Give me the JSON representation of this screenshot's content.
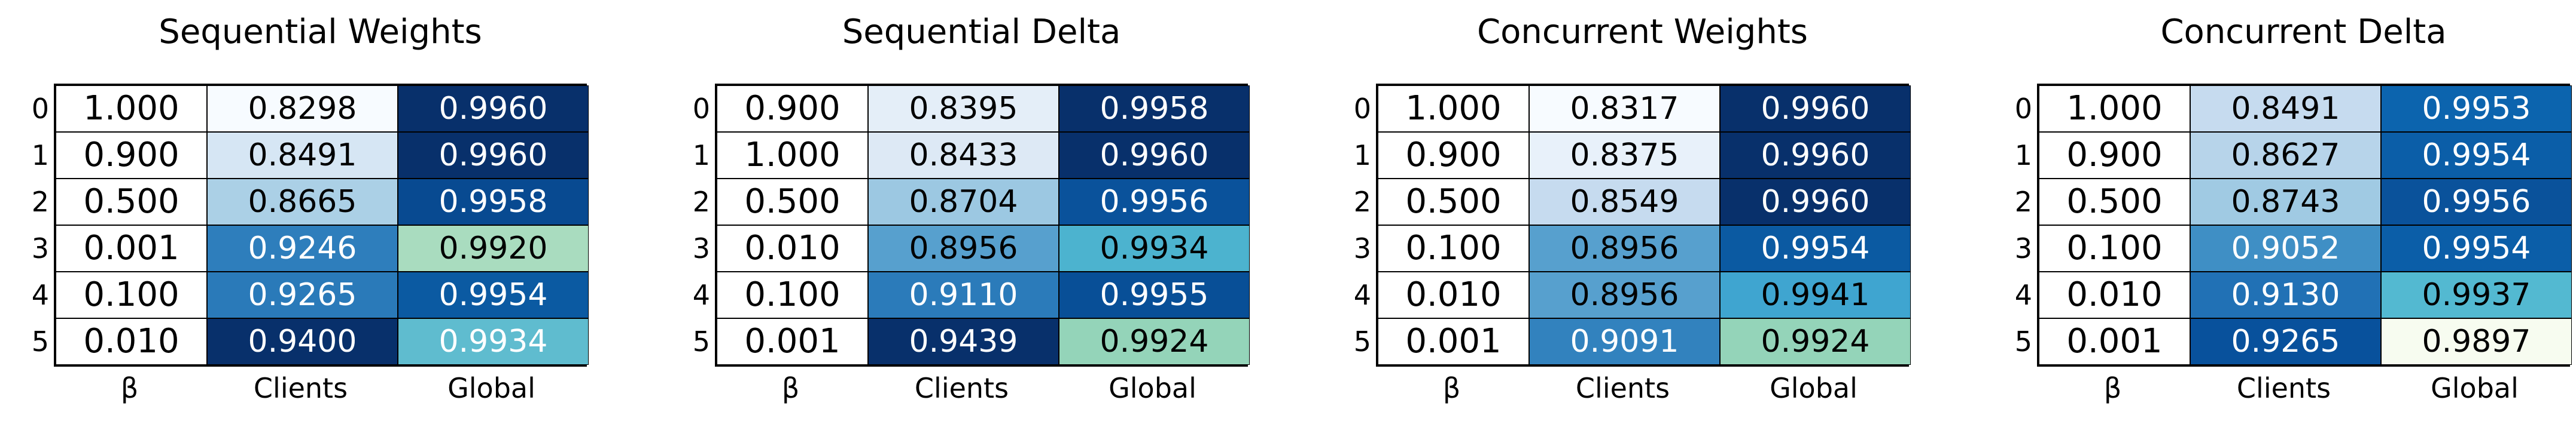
{
  "chart_data": [
    {
      "type": "table",
      "title": "Sequential Weights",
      "columns": [
        "β",
        "Clients",
        "Global"
      ],
      "row_labels": [
        "0",
        "1",
        "2",
        "3",
        "4",
        "5"
      ],
      "rows": [
        [
          "1.000",
          "0.8298",
          "0.9960"
        ],
        [
          "0.900",
          "0.8491",
          "0.9960"
        ],
        [
          "0.500",
          "0.8665",
          "0.9958"
        ],
        [
          "0.001",
          "0.9246",
          "0.9920"
        ],
        [
          "0.100",
          "0.9265",
          "0.9954"
        ],
        [
          "0.010",
          "0.9400",
          "0.9934"
        ]
      ],
      "cell_colors": [
        [
          "#ffffff",
          "#f7fbff",
          "#08306b"
        ],
        [
          "#ffffff",
          "#d6e6f4",
          "#08306b"
        ],
        [
          "#ffffff",
          "#abd0e6",
          "#084a91"
        ],
        [
          "#ffffff",
          "#2e7ebc",
          "#a9dcbf"
        ],
        [
          "#ffffff",
          "#2a7ab9",
          "#0b5aa2"
        ],
        [
          "#ffffff",
          "#08306b",
          "#5fbccf"
        ]
      ],
      "text_colors": [
        [
          "#000000",
          "#000000",
          "#ffffff"
        ],
        [
          "#000000",
          "#000000",
          "#ffffff"
        ],
        [
          "#000000",
          "#000000",
          "#ffffff"
        ],
        [
          "#000000",
          "#ffffff",
          "#000000"
        ],
        [
          "#000000",
          "#ffffff",
          "#ffffff"
        ],
        [
          "#000000",
          "#ffffff",
          "#ffffff"
        ]
      ]
    },
    {
      "type": "table",
      "title": "Sequential Delta",
      "columns": [
        "β",
        "Clients",
        "Global"
      ],
      "row_labels": [
        "0",
        "1",
        "2",
        "3",
        "4",
        "5"
      ],
      "rows": [
        [
          "0.900",
          "0.8395",
          "0.9958"
        ],
        [
          "1.000",
          "0.8433",
          "0.9960"
        ],
        [
          "0.500",
          "0.8704",
          "0.9956"
        ],
        [
          "0.010",
          "0.8956",
          "0.9934"
        ],
        [
          "0.100",
          "0.9110",
          "0.9955"
        ],
        [
          "0.001",
          "0.9439",
          "0.9924"
        ]
      ],
      "cell_colors": [
        [
          "#ffffff",
          "#e4eef8",
          "#08306b"
        ],
        [
          "#ffffff",
          "#dde9f5",
          "#08306b"
        ],
        [
          "#ffffff",
          "#9cc8e2",
          "#0a529b"
        ],
        [
          "#ffffff",
          "#57a0ce",
          "#4cb3cf"
        ],
        [
          "#ffffff",
          "#2b7bba",
          "#084f97"
        ],
        [
          "#ffffff",
          "#08306b",
          "#94d4b9"
        ]
      ],
      "text_colors": [
        [
          "#000000",
          "#000000",
          "#ffffff"
        ],
        [
          "#000000",
          "#000000",
          "#ffffff"
        ],
        [
          "#000000",
          "#000000",
          "#ffffff"
        ],
        [
          "#000000",
          "#000000",
          "#000000"
        ],
        [
          "#000000",
          "#ffffff",
          "#ffffff"
        ],
        [
          "#000000",
          "#ffffff",
          "#000000"
        ]
      ]
    },
    {
      "type": "table",
      "title": "Concurrent Weights",
      "columns": [
        "β",
        "Clients",
        "Global"
      ],
      "row_labels": [
        "0",
        "1",
        "2",
        "3",
        "4",
        "5"
      ],
      "rows": [
        [
          "1.000",
          "0.8317",
          "0.9960"
        ],
        [
          "0.900",
          "0.8375",
          "0.9960"
        ],
        [
          "0.500",
          "0.8549",
          "0.9960"
        ],
        [
          "0.100",
          "0.8956",
          "0.9954"
        ],
        [
          "0.010",
          "0.8956",
          "0.9941"
        ],
        [
          "0.001",
          "0.9091",
          "0.9924"
        ]
      ],
      "cell_colors": [
        [
          "#ffffff",
          "#f7fbff",
          "#08306b"
        ],
        [
          "#ffffff",
          "#e8f1fa",
          "#08306b"
        ],
        [
          "#ffffff",
          "#c6dbef",
          "#08306b"
        ],
        [
          "#ffffff",
          "#57a0ce",
          "#0b5aa2"
        ],
        [
          "#ffffff",
          "#57a0ce",
          "#3fa5d0"
        ],
        [
          "#ffffff",
          "#3282be",
          "#94d4b9"
        ]
      ],
      "text_colors": [
        [
          "#000000",
          "#000000",
          "#ffffff"
        ],
        [
          "#000000",
          "#000000",
          "#ffffff"
        ],
        [
          "#000000",
          "#000000",
          "#ffffff"
        ],
        [
          "#000000",
          "#000000",
          "#ffffff"
        ],
        [
          "#000000",
          "#000000",
          "#000000"
        ],
        [
          "#000000",
          "#ffffff",
          "#000000"
        ]
      ]
    },
    {
      "type": "table",
      "title": "Concurrent Delta",
      "columns": [
        "β",
        "Clients",
        "Global"
      ],
      "row_labels": [
        "0",
        "1",
        "2",
        "3",
        "4",
        "5"
      ],
      "rows": [
        [
          "1.000",
          "0.8491",
          "0.9953"
        ],
        [
          "0.900",
          "0.8627",
          "0.9954"
        ],
        [
          "0.500",
          "0.8743",
          "0.9956"
        ],
        [
          "0.100",
          "0.9052",
          "0.9954"
        ],
        [
          "0.010",
          "0.9130",
          "0.9937"
        ],
        [
          "0.001",
          "0.9265",
          "0.9897"
        ]
      ],
      "cell_colors": [
        [
          "#ffffff",
          "#c6dbef",
          "#0c64ae"
        ],
        [
          "#ffffff",
          "#b7d4ea",
          "#0b5ea8"
        ],
        [
          "#ffffff",
          "#a0cae3",
          "#0a529b"
        ],
        [
          "#ffffff",
          "#3f8fc5",
          "#0b5ea8"
        ],
        [
          "#ffffff",
          "#2171b5",
          "#53b9d1"
        ],
        [
          "#ffffff",
          "#08519c",
          "#f7fcf0"
        ]
      ],
      "text_colors": [
        [
          "#000000",
          "#000000",
          "#ffffff"
        ],
        [
          "#000000",
          "#000000",
          "#ffffff"
        ],
        [
          "#000000",
          "#000000",
          "#ffffff"
        ],
        [
          "#000000",
          "#ffffff",
          "#ffffff"
        ],
        [
          "#000000",
          "#ffffff",
          "#000000"
        ],
        [
          "#000000",
          "#ffffff",
          "#000000"
        ]
      ]
    }
  ]
}
